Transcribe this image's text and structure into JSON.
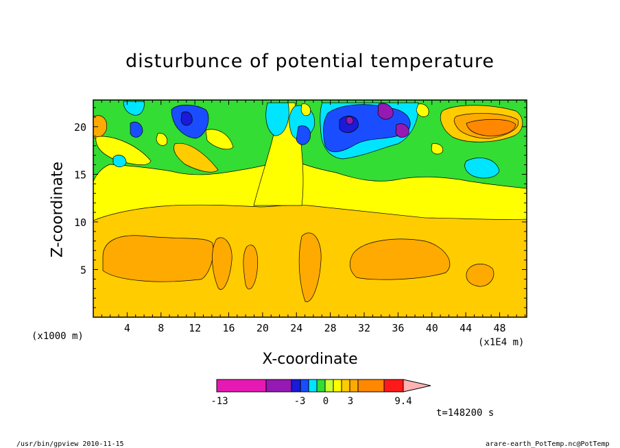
{
  "chart_data": {
    "type": "heatmap",
    "title": "disturbunce of potential temperature",
    "xlabel": "X-coordinate",
    "ylabel": "Z-coordinate",
    "x_unit": "(x1000 m)",
    "x_unit2": "(x1E4 m)",
    "x_ticks": [
      4,
      8,
      12,
      16,
      20,
      24,
      28,
      32,
      36,
      40,
      44,
      48
    ],
    "y_ticks": [
      5,
      10,
      15,
      20
    ],
    "xlim": [
      0,
      51.2
    ],
    "ylim": [
      0,
      22.8
    ],
    "colorbar": {
      "tick_labels": [
        "-13",
        "-3",
        "0",
        "3",
        "9.4"
      ],
      "colors": [
        "#e619b3",
        "#9619b3",
        "#1a1ad9",
        "#1a4dff",
        "#00e5ff",
        "#33dd33",
        "#ccff33",
        "#ffff00",
        "#ffcc00",
        "#ffaa00",
        "#ff8800",
        "#ff1a1a",
        "#ff7070",
        "#ffb3b3"
      ]
    },
    "time_label": "t=148200 s"
  },
  "footer": {
    "left": "/usr/bin/gpview   2010-11-15",
    "right": "arare-earth_PotTemp.nc@PotTemp"
  }
}
